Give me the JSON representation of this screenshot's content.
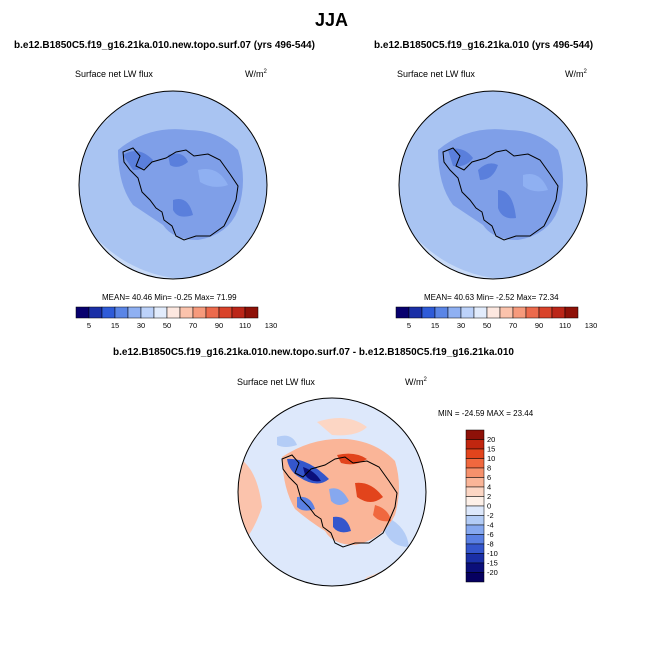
{
  "main_title": "JJA",
  "panels": [
    {
      "case_title": "b.e12.B1850C5.f19_g16.21ka.010.new.topo.surf.07 (yrs 496-544)",
      "variable": "Surface net LW flux",
      "units": "W/m",
      "units_exp": "2",
      "stats": "MEAN=  40.46  Min=  -0.25  Max=  71.99"
    },
    {
      "case_title": "b.e12.B1850C5.f19_g16.21ka.010 (yrs 496-544)",
      "variable": "Surface net LW flux",
      "units": "W/m",
      "units_exp": "2",
      "stats": "MEAN=  40.63  Min=  -2.52  Max=  72.34"
    },
    {
      "case_title": "b.e12.B1850C5.f19_g16.21ka.010.new.topo.surf.07 - b.e12.B1850C5.f19_g16.21ka.010",
      "variable": "Surface net LW flux",
      "units": "W/m",
      "units_exp": "2",
      "stats": "MIN = -24.59 MAX =  23.44"
    }
  ],
  "colorbar_abs": {
    "labels": [
      "5",
      "15",
      "30",
      "50",
      "70",
      "90",
      "110",
      "130"
    ],
    "colors": [
      "#08006e",
      "#1a2fa6",
      "#2e5bd8",
      "#5a85e6",
      "#8fb0f2",
      "#bcd2fa",
      "#e2ecfc",
      "#fde8e0",
      "#fbc3ac",
      "#f69a7c",
      "#ec6a4c",
      "#d9432a",
      "#bb2618",
      "#8e1108"
    ]
  },
  "colorbar_diff": {
    "labels": [
      "20",
      "15",
      "10",
      "8",
      "6",
      "4",
      "2",
      "0",
      "-2",
      "-4",
      "-6",
      "-8",
      "-10",
      "-15",
      "-20"
    ],
    "colors": [
      "#8e1108",
      "#c1260f",
      "#e2441c",
      "#f0683e",
      "#f6916c",
      "#fab598",
      "#fcd6c4",
      "#fdf0e8",
      "#dde8fb",
      "#b3ccf6",
      "#86a8ef",
      "#5a80e3",
      "#3456cc",
      "#1a2fa6",
      "#0b0f7a",
      "#060060"
    ]
  },
  "map_colors": {
    "ocean_abs": "#a9c4f2",
    "ocean_abs_light": "#c9dbf7",
    "land_abs": "#7f9fe8",
    "land_abs_dark": "#5a7fdc",
    "diff_base": "#dde8fb",
    "coast": "#000000"
  }
}
